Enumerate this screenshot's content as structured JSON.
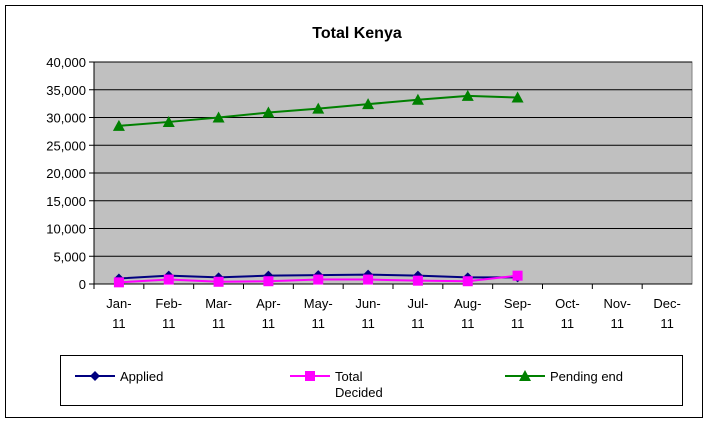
{
  "chart_data": {
    "type": "line",
    "title": "Total Kenya",
    "categories": [
      "Jan-11",
      "Feb-11",
      "Mar-11",
      "Apr-11",
      "May-11",
      "Jun-11",
      "Jul-11",
      "Aug-11",
      "Sep-11",
      "Oct-11",
      "Nov-11",
      "Dec-11"
    ],
    "series": [
      {
        "name": "Applied",
        "color": "#000080",
        "marker": "diamond",
        "values": [
          1000,
          1500,
          1200,
          1500,
          1600,
          1700,
          1500,
          1200,
          1200,
          null,
          null,
          null
        ]
      },
      {
        "name": "Total Decided",
        "color": "#ff00ff",
        "marker": "square",
        "values": [
          300,
          800,
          400,
          500,
          800,
          800,
          600,
          500,
          1500,
          null,
          null,
          null
        ]
      },
      {
        "name": "Pending end",
        "color": "#008000",
        "marker": "triangle",
        "values": [
          28500,
          29200,
          30000,
          30900,
          31600,
          32400,
          33200,
          33900,
          33600,
          null,
          null,
          null
        ]
      }
    ],
    "ylim": [
      0,
      40000
    ],
    "yticks": [
      0,
      {
        "value": 5000,
        "label": "5,000"
      },
      {
        "value": 10000,
        "label": "10,000"
      },
      {
        "value": 15000,
        "label": "15,000"
      },
      {
        "value": 20000,
        "label": "20,000"
      },
      {
        "value": 25000,
        "label": "25,000"
      },
      {
        "value": 30000,
        "label": "30,000"
      },
      {
        "value": 35000,
        "label": "35,000"
      },
      {
        "value": 40000,
        "label": "40,000"
      }
    ],
    "grid": true,
    "legend": "bottom"
  }
}
